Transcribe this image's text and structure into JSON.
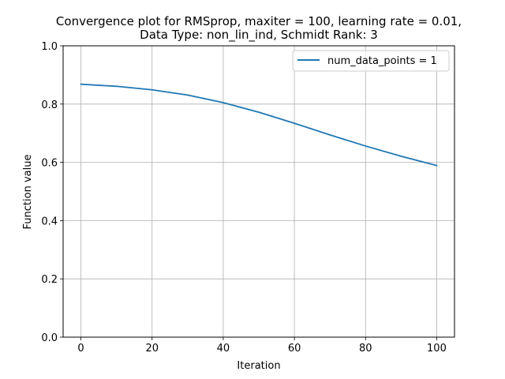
{
  "chart_data": {
    "type": "line",
    "title": "Convergence plot for RMSprop, maxiter = 100, learning rate = 0.01,",
    "subtitle": "Data Type: non_lin_ind, Schmidt Rank: 3",
    "xlabel": "Iteration",
    "ylabel": "Function value",
    "xlim": [
      -5,
      105
    ],
    "ylim": [
      0.0,
      1.0
    ],
    "xticks": [
      0,
      20,
      40,
      60,
      80,
      100
    ],
    "xtick_labels": [
      "0",
      "20",
      "40",
      "60",
      "80",
      "100"
    ],
    "yticks": [
      0.0,
      0.2,
      0.4,
      0.6,
      0.8,
      1.0
    ],
    "ytick_labels": [
      "0.0",
      "0.2",
      "0.4",
      "0.6",
      "0.8",
      "1.0"
    ],
    "grid": true,
    "legend_position": "top-right",
    "series": [
      {
        "name": "num_data_points = 1",
        "color": "#1f77b4",
        "x": [
          0,
          10,
          20,
          30,
          40,
          50,
          60,
          70,
          80,
          90,
          100
        ],
        "y": [
          0.868,
          0.861,
          0.849,
          0.831,
          0.805,
          0.772,
          0.734,
          0.694,
          0.656,
          0.621,
          0.589
        ]
      }
    ]
  }
}
